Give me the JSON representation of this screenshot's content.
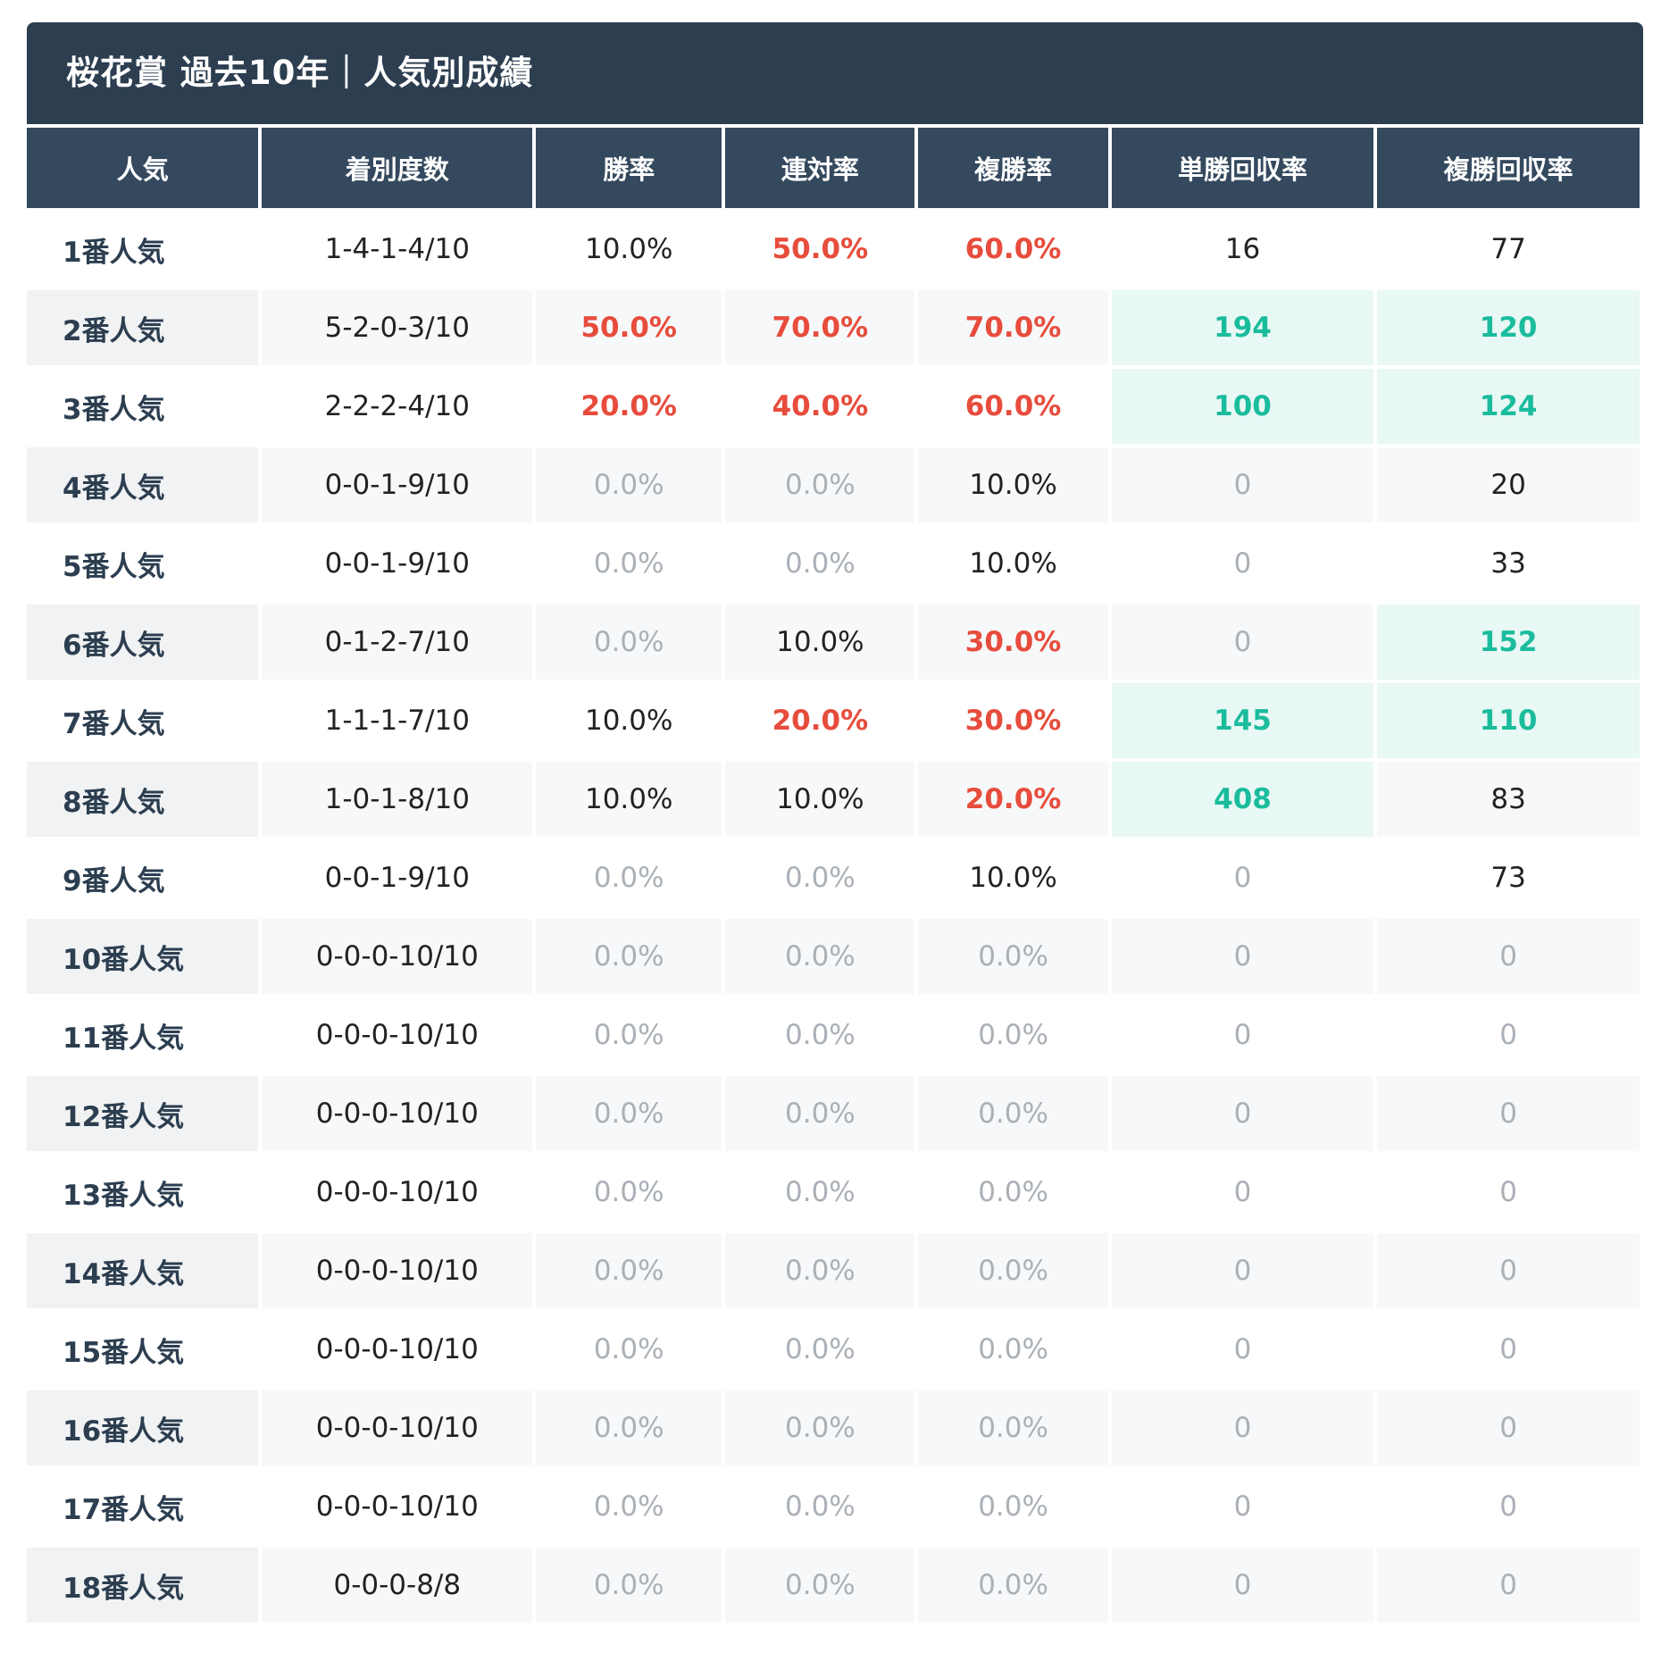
{
  "title": "桜花賞 過去10年｜人気別成績",
  "colors": {
    "title_bg": "#2c3e50",
    "header_bg": "#34495e",
    "highlight_red": "#e74c3c",
    "highlight_green": "#1abc9c",
    "green_cell_bg": "#e8f8f5",
    "zero_grey": "#aab0b6"
  },
  "columns": [
    "人気",
    "着別度数",
    "勝率",
    "連対率",
    "複勝率",
    "単勝回収率",
    "複勝回収率"
  ],
  "rows": [
    {
      "popularity": "1番人気",
      "record": "1-4-1-4/10",
      "win_rate": "10.0%",
      "quinella_rate": "50.0%",
      "place_rate": "60.0%",
      "win_return": "16",
      "place_return": "77"
    },
    {
      "popularity": "2番人気",
      "record": "5-2-0-3/10",
      "win_rate": "50.0%",
      "quinella_rate": "70.0%",
      "place_rate": "70.0%",
      "win_return": "194",
      "place_return": "120"
    },
    {
      "popularity": "3番人気",
      "record": "2-2-2-4/10",
      "win_rate": "20.0%",
      "quinella_rate": "40.0%",
      "place_rate": "60.0%",
      "win_return": "100",
      "place_return": "124"
    },
    {
      "popularity": "4番人気",
      "record": "0-0-1-9/10",
      "win_rate": "0.0%",
      "quinella_rate": "0.0%",
      "place_rate": "10.0%",
      "win_return": "0",
      "place_return": "20"
    },
    {
      "popularity": "5番人気",
      "record": "0-0-1-9/10",
      "win_rate": "0.0%",
      "quinella_rate": "0.0%",
      "place_rate": "10.0%",
      "win_return": "0",
      "place_return": "33"
    },
    {
      "popularity": "6番人気",
      "record": "0-1-2-7/10",
      "win_rate": "0.0%",
      "quinella_rate": "10.0%",
      "place_rate": "30.0%",
      "win_return": "0",
      "place_return": "152"
    },
    {
      "popularity": "7番人気",
      "record": "1-1-1-7/10",
      "win_rate": "10.0%",
      "quinella_rate": "20.0%",
      "place_rate": "30.0%",
      "win_return": "145",
      "place_return": "110"
    },
    {
      "popularity": "8番人気",
      "record": "1-0-1-8/10",
      "win_rate": "10.0%",
      "quinella_rate": "10.0%",
      "place_rate": "20.0%",
      "win_return": "408",
      "place_return": "83"
    },
    {
      "popularity": "9番人気",
      "record": "0-0-1-9/10",
      "win_rate": "0.0%",
      "quinella_rate": "0.0%",
      "place_rate": "10.0%",
      "win_return": "0",
      "place_return": "73"
    },
    {
      "popularity": "10番人気",
      "record": "0-0-0-10/10",
      "win_rate": "0.0%",
      "quinella_rate": "0.0%",
      "place_rate": "0.0%",
      "win_return": "0",
      "place_return": "0"
    },
    {
      "popularity": "11番人気",
      "record": "0-0-0-10/10",
      "win_rate": "0.0%",
      "quinella_rate": "0.0%",
      "place_rate": "0.0%",
      "win_return": "0",
      "place_return": "0"
    },
    {
      "popularity": "12番人気",
      "record": "0-0-0-10/10",
      "win_rate": "0.0%",
      "quinella_rate": "0.0%",
      "place_rate": "0.0%",
      "win_return": "0",
      "place_return": "0"
    },
    {
      "popularity": "13番人気",
      "record": "0-0-0-10/10",
      "win_rate": "0.0%",
      "quinella_rate": "0.0%",
      "place_rate": "0.0%",
      "win_return": "0",
      "place_return": "0"
    },
    {
      "popularity": "14番人気",
      "record": "0-0-0-10/10",
      "win_rate": "0.0%",
      "quinella_rate": "0.0%",
      "place_rate": "0.0%",
      "win_return": "0",
      "place_return": "0"
    },
    {
      "popularity": "15番人気",
      "record": "0-0-0-10/10",
      "win_rate": "0.0%",
      "quinella_rate": "0.0%",
      "place_rate": "0.0%",
      "win_return": "0",
      "place_return": "0"
    },
    {
      "popularity": "16番人気",
      "record": "0-0-0-10/10",
      "win_rate": "0.0%",
      "quinella_rate": "0.0%",
      "place_rate": "0.0%",
      "win_return": "0",
      "place_return": "0"
    },
    {
      "popularity": "17番人気",
      "record": "0-0-0-10/10",
      "win_rate": "0.0%",
      "quinella_rate": "0.0%",
      "place_rate": "0.0%",
      "win_return": "0",
      "place_return": "0"
    },
    {
      "popularity": "18番人気",
      "record": "0-0-0-8/8",
      "win_rate": "0.0%",
      "quinella_rate": "0.0%",
      "place_rate": "0.0%",
      "win_return": "0",
      "place_return": "0"
    }
  ]
}
